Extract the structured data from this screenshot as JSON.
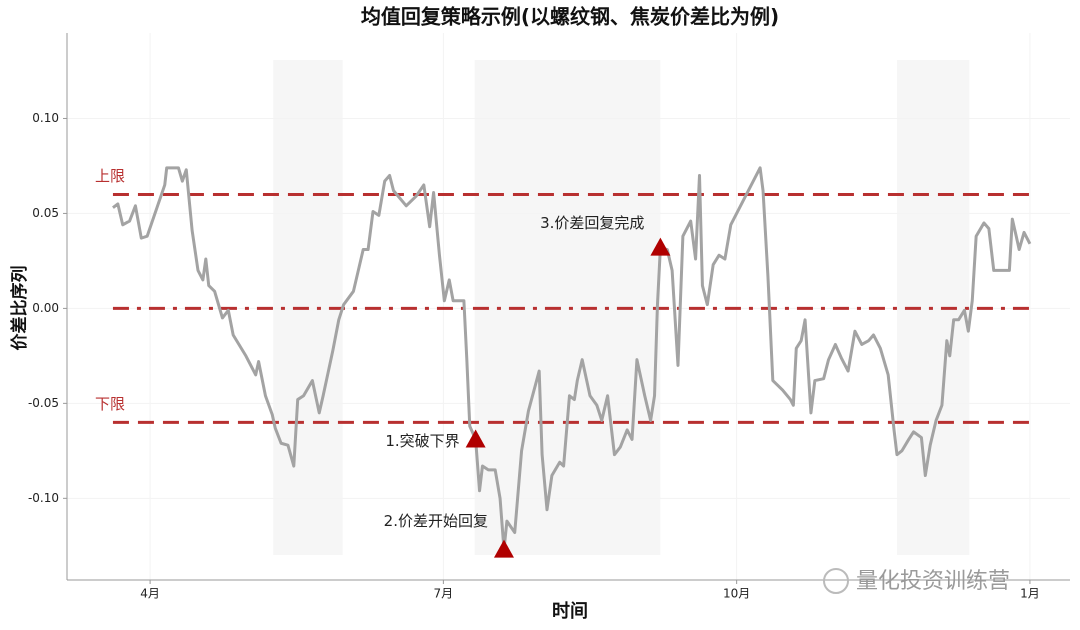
{
  "chart_data": {
    "type": "line",
    "title": "均值回复策略示例(以螺纹钢、焦炭价差比为例)",
    "x_label": "时间",
    "y_label": "价差比序列",
    "xlim": [
      3.15,
      13.41
    ],
    "ylim": [
      -0.143,
      0.145
    ],
    "xticks": [
      {
        "value": 4,
        "label": "4月"
      },
      {
        "value": 7,
        "label": "7月"
      },
      {
        "value": 10,
        "label": "10月"
      },
      {
        "value": 13,
        "label": "1月"
      }
    ],
    "yticks": [
      {
        "value": 0.1,
        "label": "0.10"
      },
      {
        "value": 0.05,
        "label": "0.05"
      },
      {
        "value": 0,
        "label": "0.00"
      },
      {
        "value": -0.05,
        "label": "-0.05"
      },
      {
        "value": -0.1,
        "label": "-0.10"
      }
    ],
    "grid": true,
    "bands": [
      [
        5.26,
        5.97
      ],
      [
        7.32,
        9.22
      ],
      [
        11.64,
        12.38
      ]
    ],
    "hlines": [
      {
        "label": "上限",
        "value": 0.06,
        "style": "dashed",
        "color": "#b83030"
      },
      {
        "value": 0,
        "style": "dashdot",
        "color": "#b83030"
      },
      {
        "label": "下限",
        "value": -0.06,
        "style": "dashed",
        "color": "#b83030"
      }
    ],
    "annotations": [
      {
        "text": "1.突破下界",
        "x": 7.33,
        "y": -0.069,
        "color": "#b00000"
      },
      {
        "text": "2.价差开始回复",
        "x": 7.62,
        "y": -0.127,
        "color": "#b00000"
      },
      {
        "text": "3.价差回复完成",
        "x": 9.22,
        "y": 0.032,
        "color": "#b00000"
      }
    ],
    "watermark": "量化投资训练营",
    "series": [
      {
        "name": "价差比",
        "color": "#a3a3a3",
        "x": [
          3.62,
          3.67,
          3.72,
          3.79,
          3.85,
          3.91,
          3.97,
          4.15,
          4.17,
          4.29,
          4.33,
          4.37,
          4.43,
          4.49,
          4.54,
          4.57,
          4.6,
          4.66,
          4.74,
          4.8,
          4.85,
          4.98,
          5.08,
          5.11,
          5.18,
          5.25,
          5.28,
          5.34,
          5.41,
          5.47,
          5.51,
          5.57,
          5.66,
          5.73,
          5.77,
          5.87,
          5.93,
          5.98,
          6.08,
          6.13,
          6.18,
          6.23,
          6.28,
          6.34,
          6.4,
          6.45,
          6.49,
          6.62,
          6.72,
          6.8,
          6.86,
          6.9,
          6.96,
          7.01,
          7.06,
          7.1,
          7.21,
          7.24,
          7.27,
          7.33,
          7.37,
          7.4,
          7.46,
          7.53,
          7.58,
          7.62,
          7.65,
          7.73,
          7.8,
          7.87,
          7.98,
          8.01,
          8.06,
          8.11,
          8.19,
          8.23,
          8.29,
          8.34,
          8.37,
          8.42,
          8.5,
          8.57,
          8.62,
          8.68,
          8.75,
          8.81,
          8.88,
          8.93,
          8.98,
          9.06,
          9.12,
          9.16,
          9.19,
          9.22,
          9.29,
          9.34,
          9.4,
          9.45,
          9.53,
          9.58,
          9.62,
          9.65,
          9.7,
          9.76,
          9.82,
          9.88,
          9.94,
          10.24,
          10.27,
          10.32,
          10.37,
          10.47,
          10.55,
          10.58,
          10.61,
          10.66,
          10.7,
          10.76,
          10.8,
          10.89,
          10.94,
          11.01,
          11.07,
          11.14,
          11.21,
          11.28,
          11.35,
          11.4,
          11.47,
          11.55,
          11.61,
          11.64,
          11.69,
          11.76,
          11.81,
          11.89,
          11.93,
          11.98,
          12.04,
          12.1,
          12.15,
          12.18,
          12.22,
          12.27,
          12.33,
          12.37,
          12.41,
          12.45,
          12.53,
          12.58,
          12.63,
          12.72,
          12.79,
          12.82,
          12.86,
          12.89,
          12.94,
          13.0
        ],
        "values": [
          0.053,
          0.055,
          0.044,
          0.046,
          0.054,
          0.037,
          0.038,
          0.065,
          0.074,
          0.074,
          0.067,
          0.073,
          0.041,
          0.02,
          0.015,
          0.026,
          0.012,
          0.009,
          -0.005,
          -0.001,
          -0.014,
          -0.025,
          -0.035,
          -0.028,
          -0.046,
          -0.056,
          -0.063,
          -0.071,
          -0.072,
          -0.083,
          -0.048,
          -0.046,
          -0.038,
          -0.055,
          -0.046,
          -0.022,
          -0.006,
          0.002,
          0.009,
          0.02,
          0.031,
          0.031,
          0.051,
          0.049,
          0.067,
          0.07,
          0.062,
          0.054,
          0.059,
          0.065,
          0.043,
          0.061,
          0.028,
          0.004,
          0.015,
          0.004,
          0.004,
          -0.027,
          -0.062,
          -0.069,
          -0.096,
          -0.083,
          -0.085,
          -0.085,
          -0.1,
          -0.127,
          -0.112,
          -0.118,
          -0.075,
          -0.054,
          -0.033,
          -0.077,
          -0.106,
          -0.088,
          -0.081,
          -0.083,
          -0.046,
          -0.048,
          -0.038,
          -0.027,
          -0.046,
          -0.051,
          -0.059,
          -0.046,
          -0.077,
          -0.073,
          -0.064,
          -0.069,
          -0.027,
          -0.046,
          -0.059,
          -0.046,
          0.002,
          0.032,
          0.031,
          0.02,
          -0.03,
          0.038,
          0.046,
          0.026,
          0.07,
          0.012,
          0.002,
          0.023,
          0.028,
          0.026,
          0.044,
          0.074,
          0.062,
          0.017,
          -0.038,
          -0.043,
          -0.048,
          -0.051,
          -0.021,
          -0.017,
          -0.006,
          -0.055,
          -0.038,
          -0.037,
          -0.027,
          -0.019,
          -0.026,
          -0.033,
          -0.012,
          -0.019,
          -0.017,
          -0.014,
          -0.021,
          -0.035,
          -0.064,
          -0.077,
          -0.075,
          -0.069,
          -0.065,
          -0.068,
          -0.088,
          -0.072,
          -0.059,
          -0.051,
          -0.017,
          -0.025,
          -0.006,
          -0.006,
          -0.001,
          -0.012,
          0.004,
          0.038,
          0.045,
          0.042,
          0.02,
          0.02,
          0.02,
          0.047,
          0.038,
          0.031,
          0.04,
          0.034
        ]
      }
    ]
  }
}
